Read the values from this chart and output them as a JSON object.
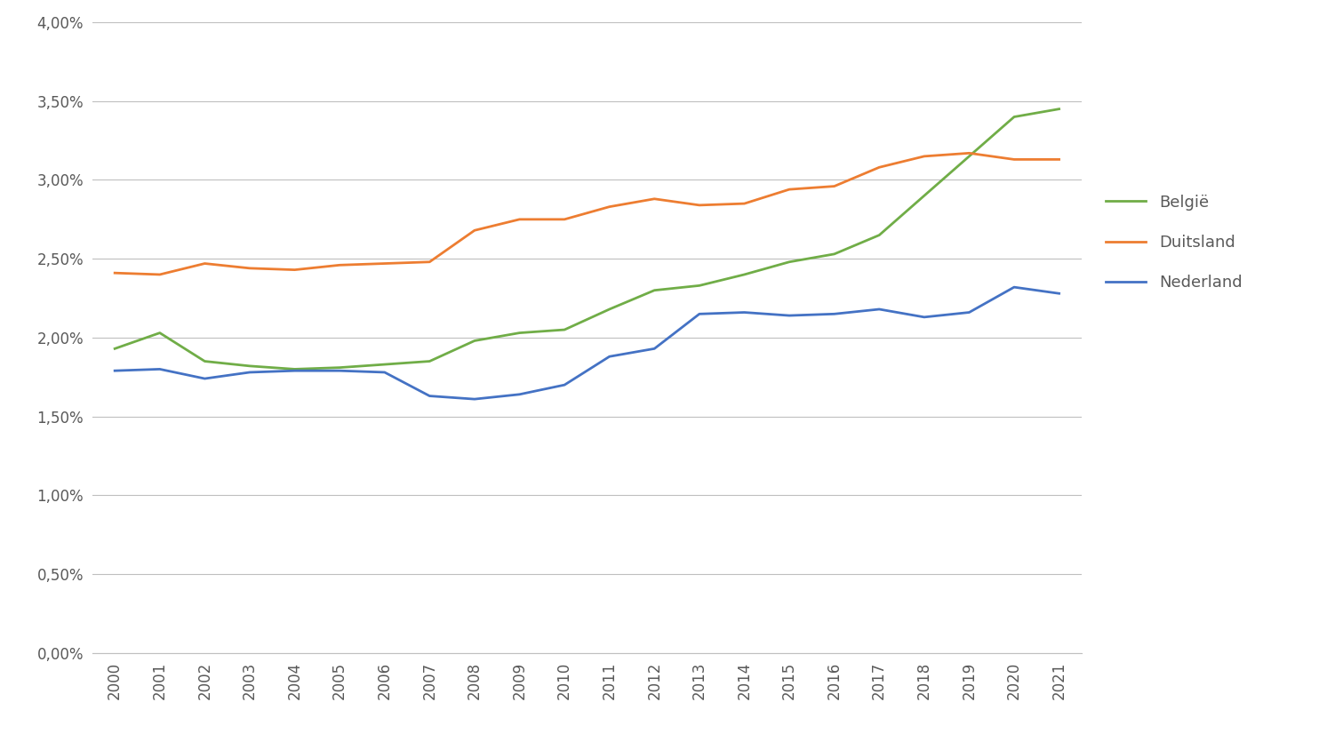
{
  "years": [
    2000,
    2001,
    2002,
    2003,
    2004,
    2005,
    2006,
    2007,
    2008,
    2009,
    2010,
    2011,
    2012,
    2013,
    2014,
    2015,
    2016,
    2017,
    2018,
    2019,
    2020,
    2021
  ],
  "belgie": [
    0.0193,
    0.0203,
    0.0185,
    0.0182,
    0.018,
    0.0181,
    0.0183,
    0.0185,
    0.0198,
    0.0203,
    0.0205,
    0.0218,
    0.023,
    0.0233,
    0.024,
    0.0248,
    0.0253,
    0.0265,
    0.029,
    0.0315,
    0.034,
    0.0345
  ],
  "duitsland": [
    0.0241,
    0.024,
    0.0247,
    0.0244,
    0.0243,
    0.0246,
    0.0247,
    0.0248,
    0.0268,
    0.0275,
    0.0275,
    0.0283,
    0.0288,
    0.0284,
    0.0285,
    0.0294,
    0.0296,
    0.0308,
    0.0315,
    0.0317,
    0.0313,
    0.0313
  ],
  "nederland": [
    0.0179,
    0.018,
    0.0174,
    0.0178,
    0.0179,
    0.0179,
    0.0178,
    0.0163,
    0.0161,
    0.0164,
    0.017,
    0.0188,
    0.0193,
    0.0215,
    0.0216,
    0.0214,
    0.0215,
    0.0218,
    0.0213,
    0.0216,
    0.0232,
    0.0228
  ],
  "belgie_color": "#70ad47",
  "duitsland_color": "#ed7d31",
  "nederland_color": "#4472c4",
  "background_color": "#ffffff",
  "grid_color": "#bfbfbf",
  "ylim": [
    0.0,
    0.04
  ],
  "yticks": [
    0.0,
    0.005,
    0.01,
    0.015,
    0.02,
    0.025,
    0.03,
    0.035,
    0.04
  ],
  "ytick_labels": [
    "0,00%",
    "0,50%",
    "1,00%",
    "1,50%",
    "2,00%",
    "2,50%",
    "3,00%",
    "3,50%",
    "4,00%"
  ],
  "legend_labels": [
    "België",
    "Duitsland",
    "Nederland"
  ],
  "line_width": 2.0,
  "tick_label_color": "#595959",
  "tick_fontsize": 12
}
